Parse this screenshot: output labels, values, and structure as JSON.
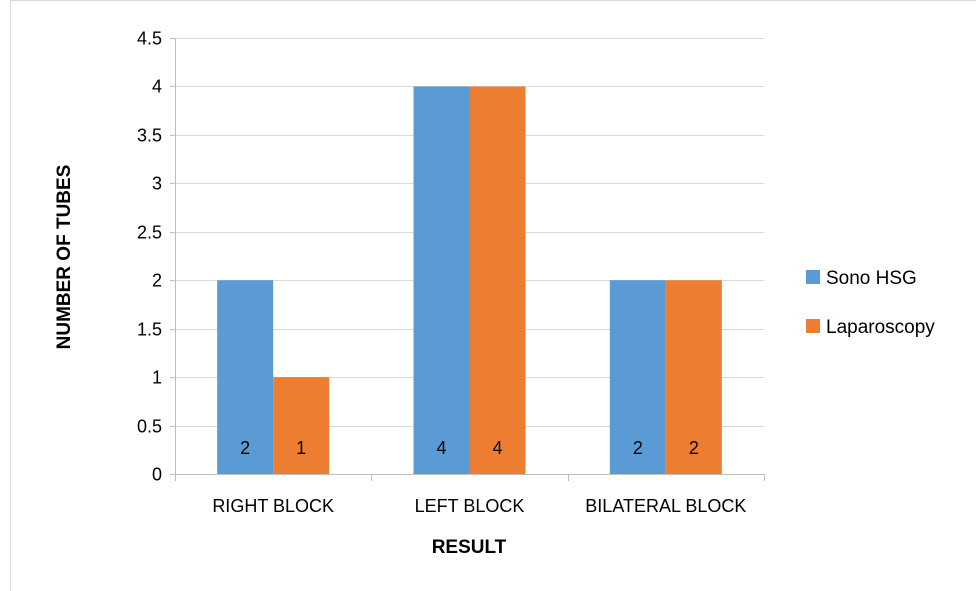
{
  "chart_data": {
    "type": "bar",
    "categories": [
      "RIGHT BLOCK",
      "LEFT BLOCK",
      "BILATERAL BLOCK"
    ],
    "series": [
      {
        "name": "Sono HSG",
        "values": [
          2,
          4,
          2
        ],
        "color": "#5B9BD5"
      },
      {
        "name": "Laparoscopy",
        "values": [
          1,
          4,
          2
        ],
        "color": "#ED7D31"
      }
    ],
    "xlabel": "RESULT",
    "ylabel": "NUMBER OF TUBES",
    "ylim": [
      0,
      4.5
    ],
    "yticks": [
      "0",
      "0.5",
      "1",
      "1.5",
      "2",
      "2.5",
      "3",
      "3.5",
      "4",
      "4.5"
    ],
    "data_labels": true,
    "grid": true,
    "legend_position": "right"
  }
}
